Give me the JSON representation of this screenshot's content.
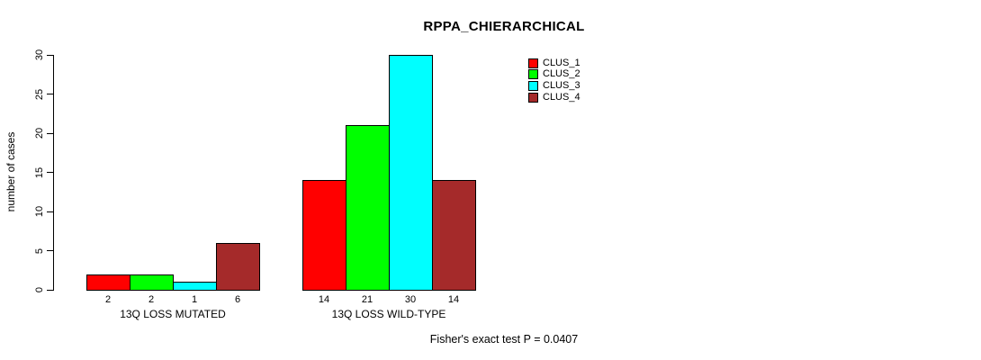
{
  "chart_data": {
    "type": "bar",
    "title": "RPPA_CHIERARCHICAL",
    "ylabel": "number of cases",
    "xlabel": "",
    "ylim": [
      0,
      30
    ],
    "yticks": [
      0,
      5,
      10,
      15,
      20,
      25,
      30
    ],
    "grid": false,
    "legend_position": "top-right",
    "categories": [
      "13Q LOSS MUTATED",
      "13Q LOSS WILD-TYPE"
    ],
    "series": [
      {
        "name": "CLUS_1",
        "color": "#ff0000",
        "values": [
          2,
          14
        ]
      },
      {
        "name": "CLUS_2",
        "color": "#00ff00",
        "values": [
          2,
          21
        ]
      },
      {
        "name": "CLUS_3",
        "color": "#00ffff",
        "values": [
          1,
          30
        ]
      },
      {
        "name": "CLUS_4",
        "color": "#a52a2a",
        "values": [
          6,
          14
        ]
      }
    ],
    "show_values_under_bars": true,
    "bar_border_color": "#000000",
    "annotation": "Fisher's exact test P = 0.0407"
  }
}
